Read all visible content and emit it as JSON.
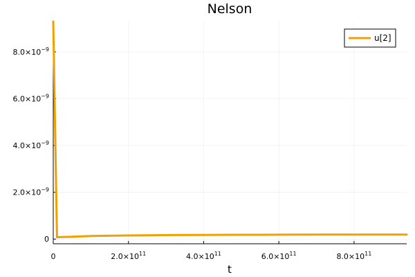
{
  "chart_data": {
    "type": "line",
    "title": "Nelson",
    "xlabel": "t",
    "ylabel": "",
    "xlim": [
      0,
      940000000000.0
    ],
    "ylim": [
      -2e-10,
      9.3e-09
    ],
    "grid": true,
    "legend_position": "top-right",
    "x_ticks": [
      {
        "value": 0,
        "label": "0",
        "exp": ""
      },
      {
        "value": 200000000000.0,
        "label": "2.0×10",
        "exp": "11"
      },
      {
        "value": 400000000000.0,
        "label": "4.0×10",
        "exp": "11"
      },
      {
        "value": 600000000000.0,
        "label": "6.0×10",
        "exp": "11"
      },
      {
        "value": 800000000000.0,
        "label": "8.0×10",
        "exp": "11"
      }
    ],
    "y_ticks": [
      {
        "value": 0,
        "label": "0",
        "exp": ""
      },
      {
        "value": 2e-09,
        "label": "2.0×10",
        "exp": "−9"
      },
      {
        "value": 4e-09,
        "label": "4.0×10",
        "exp": "−9"
      },
      {
        "value": 6e-09,
        "label": "6.0×10",
        "exp": "−9"
      },
      {
        "value": 8e-09,
        "label": "8.0×10",
        "exp": "−9"
      }
    ],
    "series": [
      {
        "name": "u[2]",
        "color": "#f2a000",
        "x": [
          0,
          10000000000.0,
          50000000000.0,
          100000000000.0,
          200000000000.0,
          300000000000.0,
          400000000000.0,
          500000000000.0,
          600000000000.0,
          700000000000.0,
          800000000000.0,
          940000000000.0
        ],
        "y": [
          9.3e-09,
          8e-11,
          1e-10,
          1.3e-10,
          1.55e-10,
          1.7e-10,
          1.78e-10,
          1.84e-10,
          1.88e-10,
          1.91e-10,
          1.93e-10,
          1.95e-10
        ]
      }
    ]
  }
}
